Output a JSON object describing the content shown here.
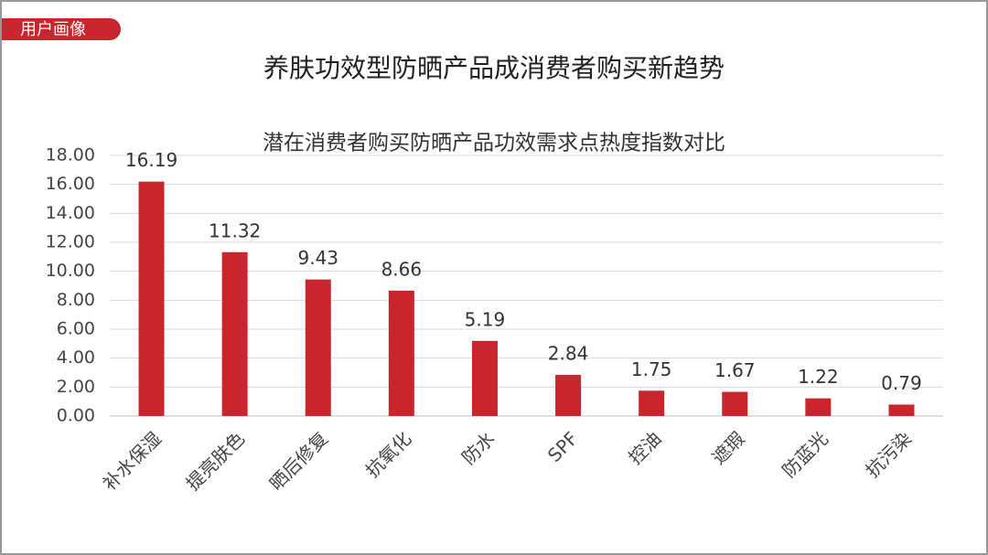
{
  "header": {
    "tag": "用户画像",
    "title": "养肤功效型防晒产品成消费者购买新趋势"
  },
  "chart_data": {
    "type": "bar",
    "title": "潜在消费者购买防晒产品功效需求点热度指数对比",
    "categories": [
      "补水保湿",
      "提亮肤色",
      "晒后修复",
      "抗氧化",
      "防水",
      "SPF",
      "控油",
      "遮瑕",
      "防蓝光",
      "抗污染"
    ],
    "values": [
      16.19,
      11.32,
      9.43,
      8.66,
      5.19,
      2.84,
      1.75,
      1.67,
      1.22,
      0.79
    ],
    "color": "#c8252c",
    "ylim": [
      0,
      18
    ],
    "yticks": [
      {
        "value": 0,
        "label": "0.00"
      },
      {
        "value": 2,
        "label": "2.00"
      },
      {
        "value": 4,
        "label": "4.00"
      },
      {
        "value": 6,
        "label": "6.00"
      },
      {
        "value": 8,
        "label": "8.00"
      },
      {
        "value": 10,
        "label": "10.00"
      },
      {
        "value": 12,
        "label": "12.00"
      },
      {
        "value": 14,
        "label": "14.00"
      },
      {
        "value": 16,
        "label": "16.00"
      },
      {
        "value": 18,
        "label": "18.00"
      }
    ],
    "grid": true
  }
}
